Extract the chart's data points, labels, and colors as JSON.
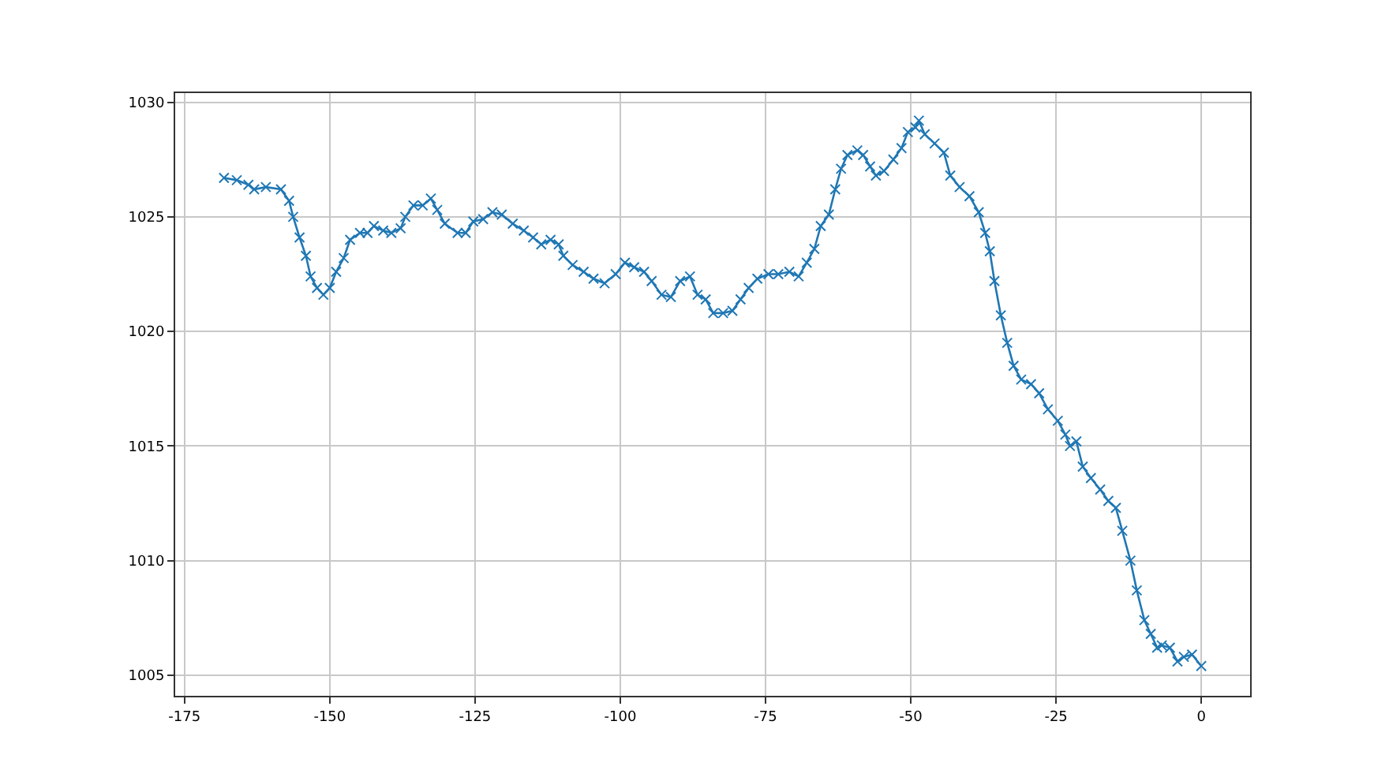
{
  "chart_data": {
    "type": "line",
    "marker": "cross",
    "line_style": "solid",
    "grid": true,
    "x": [
      -168.2,
      -166,
      -164,
      -163,
      -161,
      -158.4,
      -157,
      -156.3,
      -155.2,
      -154.1,
      -153.3,
      -152.2,
      -151.1,
      -150,
      -148.9,
      -147.6,
      -146.5,
      -144.8,
      -143.5,
      -142.4,
      -140.8,
      -139.4,
      -137.8,
      -137,
      -135.6,
      -134,
      -132.6,
      -131.5,
      -130.2,
      -128,
      -126.6,
      -125.3,
      -123.6,
      -122,
      -120.4,
      -118.5,
      -116.6,
      -115,
      -113.6,
      -112,
      -110.6,
      -109.8,
      -108.2,
      -106.3,
      -104.6,
      -102.7,
      -100.8,
      -99.2,
      -97.6,
      -95.9,
      -94.6,
      -92.9,
      -91.3,
      -89.7,
      -88,
      -86.7,
      -85.3,
      -84,
      -82.3,
      -80.7,
      -79.3,
      -77.9,
      -76.4,
      -74.5,
      -72.8,
      -70.9,
      -69.3,
      -67.9,
      -66.6,
      -65.5,
      -64.1,
      -63,
      -62,
      -60.9,
      -59.2,
      -58.2,
      -57,
      -56,
      -54.6,
      -53,
      -51.6,
      -50.5,
      -49.2,
      -48.6,
      -47.6,
      -45.9,
      -44.3,
      -43.2,
      -41.6,
      -39.9,
      -38.3,
      -37.2,
      -36.4,
      -35.6,
      -34.5,
      -33.4,
      -32.3,
      -31,
      -29.3,
      -27.9,
      -26.4,
      -24.7,
      -23.4,
      -22.6,
      -21.5,
      -20.4,
      -19,
      -17.4,
      -16,
      -14.7,
      -13.6,
      -12.2,
      -11.1,
      -9.8,
      -8.7,
      -7.6,
      -6.8,
      -5.4,
      -4.1,
      -3,
      -1.6,
      0
    ],
    "series": [
      {
        "color": "#1f77b4",
        "values": [
          1026.7,
          1026.6,
          1026.4,
          1026.2,
          1026.3,
          1026.2,
          1025.7,
          1025.0,
          1024.1,
          1023.3,
          1022.4,
          1021.9,
          1021.6,
          1021.9,
          1022.6,
          1023.2,
          1024.0,
          1024.3,
          1024.3,
          1024.6,
          1024.4,
          1024.3,
          1024.5,
          1025.0,
          1025.5,
          1025.5,
          1025.8,
          1025.3,
          1024.7,
          1024.3,
          1024.3,
          1024.8,
          1024.9,
          1025.2,
          1025.1,
          1024.7,
          1024.4,
          1024.1,
          1023.8,
          1024.0,
          1023.8,
          1023.3,
          1022.9,
          1022.6,
          1022.3,
          1022.1,
          1022.5,
          1023.0,
          1022.8,
          1022.6,
          1022.2,
          1021.6,
          1021.5,
          1022.2,
          1022.4,
          1021.6,
          1021.4,
          1020.8,
          1020.8,
          1020.9,
          1021.4,
          1021.9,
          1022.3,
          1022.5,
          1022.5,
          1022.6,
          1022.4,
          1023.0,
          1023.6,
          1024.6,
          1025.1,
          1026.2,
          1027.1,
          1027.7,
          1027.9,
          1027.7,
          1027.2,
          1026.8,
          1027.0,
          1027.5,
          1028.0,
          1028.7,
          1028.9,
          1029.2,
          1028.6,
          1028.2,
          1027.8,
          1026.8,
          1026.3,
          1025.9,
          1025.2,
          1024.3,
          1023.5,
          1022.2,
          1020.7,
          1019.5,
          1018.5,
          1017.9,
          1017.7,
          1017.3,
          1016.6,
          1016.1,
          1015.5,
          1015.0,
          1015.2,
          1014.1,
          1013.6,
          1013.1,
          1012.6,
          1012.3,
          1011.3,
          1010.0,
          1008.7,
          1007.4,
          1006.8,
          1006.2,
          1006.3,
          1006.2,
          1005.6,
          1005.8,
          1005.9,
          1005.4
        ]
      }
    ],
    "xlim": [
      -176.6,
      8.4
    ],
    "xticks": [
      -175,
      -150,
      -125,
      -100,
      -75,
      -50,
      -25,
      0
    ],
    "ylim": [
      1004.1,
      1030.4
    ],
    "yticks": [
      1005,
      1010,
      1015,
      1020,
      1025,
      1030
    ]
  }
}
